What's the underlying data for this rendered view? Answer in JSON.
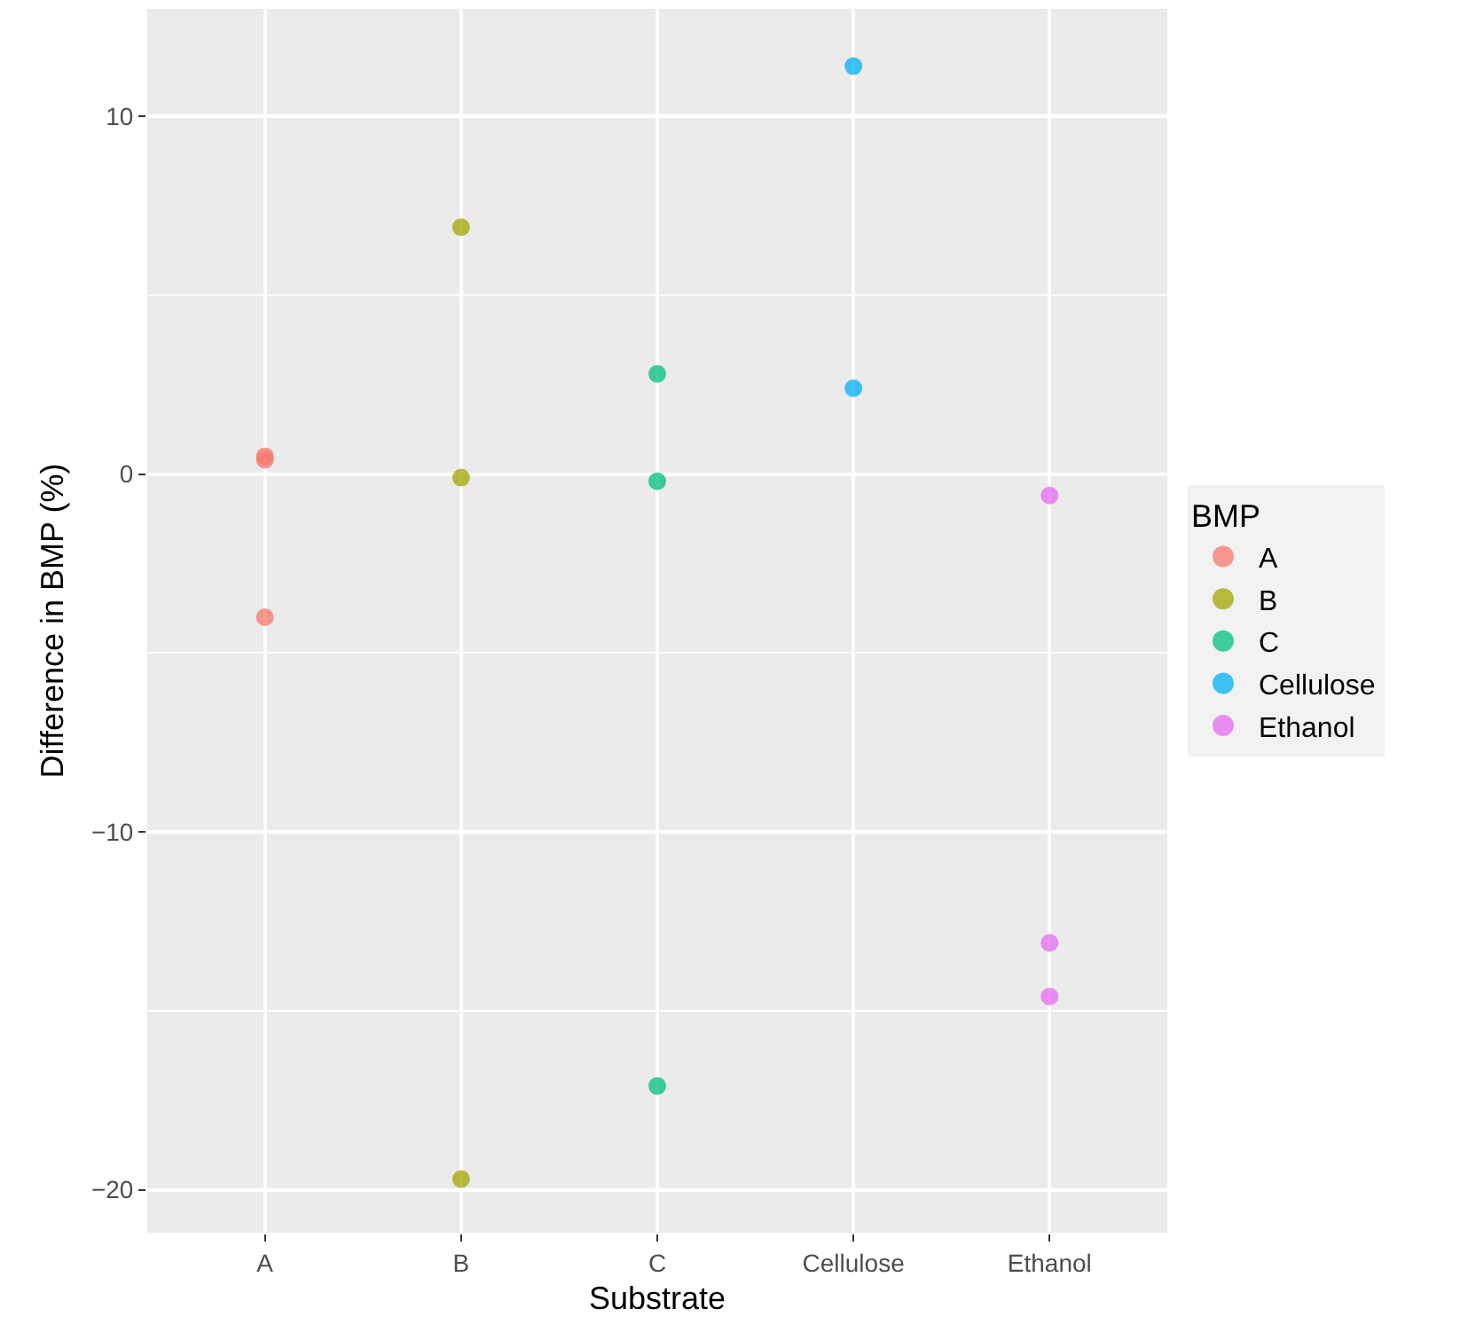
{
  "chart_data": {
    "type": "scatter",
    "xlabel": "Substrate",
    "ylabel": "Difference in BMP (%)",
    "legend_title": "BMP",
    "categories": [
      "A",
      "B",
      "C",
      "Cellulose",
      "Ethanol"
    ],
    "series": [
      {
        "name": "A",
        "color": "#f8766d",
        "x": [
          "A",
          "A",
          "A"
        ],
        "values": [
          0.5,
          0.4,
          -4.0
        ]
      },
      {
        "name": "B",
        "color": "#a3a500",
        "x": [
          "B",
          "B",
          "B"
        ],
        "values": [
          6.9,
          -0.1,
          -19.7
        ]
      },
      {
        "name": "C",
        "color": "#00bf7d",
        "x": [
          "C",
          "C",
          "C"
        ],
        "values": [
          2.8,
          -0.2,
          -17.1
        ]
      },
      {
        "name": "Cellulose",
        "color": "#00b0f6",
        "x": [
          "Cellulose",
          "Cellulose"
        ],
        "values": [
          11.4,
          2.4
        ]
      },
      {
        "name": "Ethanol",
        "color": "#e76bf3",
        "x": [
          "Ethanol",
          "Ethanol",
          "Ethanol"
        ],
        "values": [
          -0.6,
          -13.1,
          -14.6
        ]
      }
    ],
    "ylim": [
      -21.2,
      13.0
    ],
    "yticks": [
      -20,
      -10,
      0,
      10
    ],
    "grid": true,
    "legend": "right",
    "marker": "circle"
  }
}
